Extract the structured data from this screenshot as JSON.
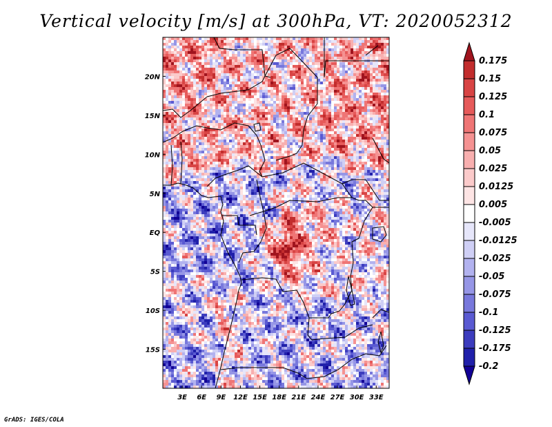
{
  "title": "Vertical velocity [m/s] at 300hPa, VT: 2020052312",
  "footer": "GrADS: IGES/COLA",
  "chart_data": {
    "type": "heatmap",
    "variable": "Vertical velocity",
    "units": "m/s",
    "level": "300hPa",
    "valid_time": "2020052312",
    "lon_range": [
      0,
      35
    ],
    "lat_range": [
      -20,
      25
    ],
    "x_ticks": [
      {
        "value": 3,
        "label": "3E"
      },
      {
        "value": 6,
        "label": "6E"
      },
      {
        "value": 9,
        "label": "9E"
      },
      {
        "value": 12,
        "label": "12E"
      },
      {
        "value": 15,
        "label": "15E"
      },
      {
        "value": 18,
        "label": "18E"
      },
      {
        "value": 21,
        "label": "21E"
      },
      {
        "value": 24,
        "label": "24E"
      },
      {
        "value": 27,
        "label": "27E"
      },
      {
        "value": 30,
        "label": "30E"
      },
      {
        "value": 33,
        "label": "33E"
      }
    ],
    "y_ticks": [
      {
        "value": 20,
        "label": "20N"
      },
      {
        "value": 15,
        "label": "15N"
      },
      {
        "value": 10,
        "label": "10N"
      },
      {
        "value": 5,
        "label": "5N"
      },
      {
        "value": 0,
        "label": "EQ"
      },
      {
        "value": -5,
        "label": "5S"
      },
      {
        "value": -10,
        "label": "10S"
      },
      {
        "value": -15,
        "label": "15S"
      }
    ],
    "colorbar": {
      "labels": [
        "0.175",
        "0.15",
        "0.125",
        "0.1",
        "0.075",
        "0.05",
        "0.025",
        "0.0125",
        "0.005",
        "-0.005",
        "-0.0125",
        "-0.025",
        "-0.05",
        "-0.075",
        "-0.1",
        "-0.125",
        "-0.175",
        "-0.2"
      ],
      "colors": [
        "#a0141e",
        "#c22d2d",
        "#d84444",
        "#e65a5a",
        "#ef7575",
        "#f59292",
        "#f8afaf",
        "#fbcaca",
        "#fde4e4",
        "#ffffff",
        "#e6e6fa",
        "#cfcff5",
        "#b2b2ef",
        "#9696e6",
        "#7878dc",
        "#5a5ad2",
        "#3c3cbe",
        "#2020aa",
        "#120096"
      ],
      "extend": "both"
    },
    "notable_regions": [
      {
        "description": "Strong ascent maximum near 17-20E, 1-4S",
        "sign": "positive"
      },
      {
        "description": "Predominantly positive band over northern Sahel 10-22N",
        "sign": "positive"
      },
      {
        "description": "Subsidence over Atlantic west of Gabon/Angola",
        "sign": "negative"
      }
    ]
  }
}
